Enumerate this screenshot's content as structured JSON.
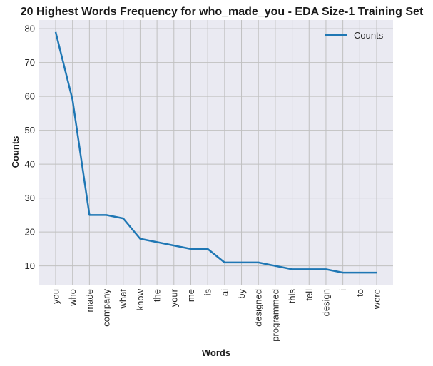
{
  "chart_data": {
    "type": "line",
    "title": "20 Highest Words Frequency for who_made_you - EDA Size-1 Training Set",
    "xlabel": "Words",
    "ylabel": "Counts",
    "categories": [
      "you",
      "who",
      "made",
      "company",
      "what",
      "know",
      "the",
      "your",
      "me",
      "is",
      "ai",
      "by",
      "designed",
      "programmed",
      "this",
      "tell",
      "design",
      "i",
      "to",
      "were"
    ],
    "series": [
      {
        "name": "Counts",
        "values": [
          79,
          59,
          25,
          25,
          24,
          18,
          17,
          16,
          15,
          15,
          11,
          11,
          11,
          10,
          9,
          9,
          9,
          8,
          8,
          8
        ],
        "color": "#1f77b4"
      }
    ],
    "ylim": [
      4.45,
      82.55
    ],
    "yticks": [
      10,
      20,
      30,
      40,
      50,
      60,
      70,
      80
    ],
    "grid": true,
    "legend_position": "top-right",
    "background_color": "#eaeaf2",
    "grid_color": "#c0c0c0"
  }
}
